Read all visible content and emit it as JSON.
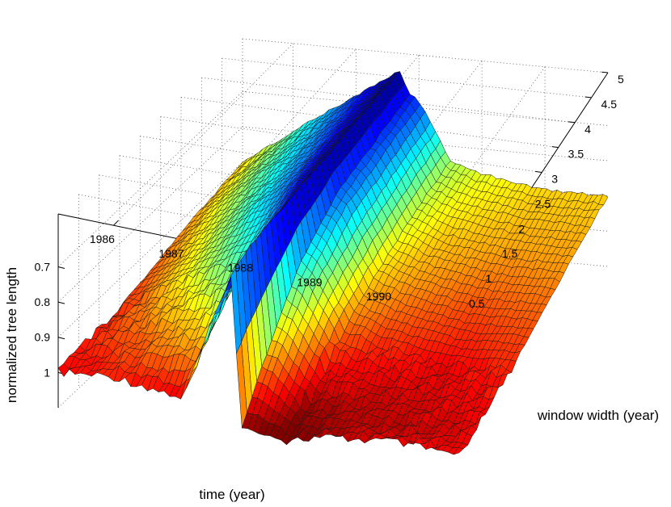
{
  "chart_data": {
    "type": "surface",
    "colormap": "jet",
    "grid": true,
    "xlabel": "time (year)",
    "ylabel": "window width (year)",
    "zlabel": "normalized tree length",
    "x_ticks": [
      "1986",
      "1987",
      "1988",
      "1989",
      "1990"
    ],
    "y_ticks": [
      "0.5",
      "1",
      "1.5",
      "2",
      "2.5",
      "3",
      "3.5",
      "4",
      "4.5",
      "5"
    ],
    "z_ticks": [
      "0.7",
      "0.8",
      "0.9",
      "1"
    ],
    "xlim": [
      1985.2,
      1991.0
    ],
    "ylim": [
      0.5,
      5
    ],
    "zlim": [
      0.55,
      1.1
    ],
    "z_axis_reversed": true,
    "surface_rows_by_window_width": {
      "window_width": [
        0.5,
        1.0,
        2.0,
        3.0,
        4.0,
        5.0
      ],
      "time": [
        1985.2,
        1986.0,
        1987.0,
        1987.7,
        1987.85,
        1988.0,
        1988.5,
        1989.0,
        1990.0,
        1991.0
      ],
      "normalized_tree_length": [
        [
          1.0,
          0.98,
          1.0,
          0.62,
          1.05,
          1.05,
          1.06,
          1.03,
          1.0,
          1.0
        ],
        [
          0.99,
          0.96,
          0.92,
          0.6,
          0.95,
          0.95,
          1.05,
          1.03,
          1.02,
          1.0
        ],
        [
          0.98,
          0.9,
          0.8,
          0.6,
          0.78,
          0.8,
          0.95,
          0.98,
          1.0,
          0.98
        ],
        [
          0.95,
          0.86,
          0.72,
          0.6,
          0.7,
          0.72,
          0.9,
          0.93,
          0.96,
          0.95
        ],
        [
          0.92,
          0.82,
          0.7,
          0.6,
          0.68,
          0.7,
          0.86,
          0.9,
          0.92,
          0.92
        ],
        [
          0.9,
          0.8,
          0.68,
          0.6,
          0.66,
          0.68,
          0.84,
          0.87,
          0.9,
          0.9
        ]
      ]
    }
  }
}
